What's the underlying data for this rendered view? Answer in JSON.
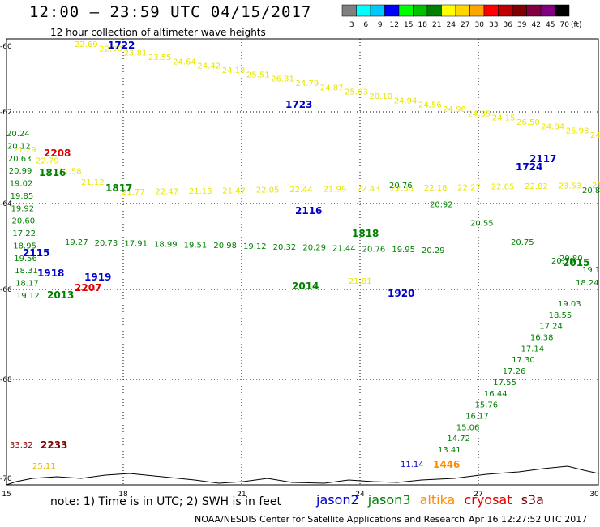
{
  "header": {
    "title": "12:00 – 23:59 UTC 04/15/2017",
    "subtitle": "12 hour collection of altimeter wave heights"
  },
  "legend": {
    "ticks": [
      "3",
      "6",
      "9",
      "12",
      "15",
      "18",
      "21",
      "24",
      "27",
      "30",
      "33",
      "36",
      "39",
      "42",
      "45",
      "70"
    ],
    "unit": "(ft)",
    "colors": [
      "#808080",
      "#00ffff",
      "#00c8ff",
      "#0000ff",
      "#00ff00",
      "#00c000",
      "#008000",
      "#ffff00",
      "#ffd700",
      "#ffa500",
      "#ff0000",
      "#c00000",
      "#800000",
      "#800040",
      "#800080",
      "#000000"
    ]
  },
  "axes": {
    "y_ticks": [
      "-60",
      "-62",
      "-64",
      "-66",
      "-68",
      "-70"
    ],
    "x_ticks": [
      "15",
      "18",
      "21",
      "24",
      "27",
      "30"
    ]
  },
  "footer": {
    "note": "note: 1) Time is in UTC; 2) SWH is in feet",
    "sats": [
      "jason2",
      "jason3",
      "altika",
      "cryosat",
      "s3a"
    ],
    "credit": "NOAA/NESDIS Center for Satellite Applications and Research",
    "timestamp": "Apr 16 12:27:52 UTC 2017"
  },
  "track_labels": [
    {
      "text": "1722",
      "color": "#0000cc"
    },
    {
      "text": "1723",
      "color": "#0000cc"
    },
    {
      "text": "2117",
      "color": "#0000cc"
    },
    {
      "text": "1724",
      "color": "#0000cc"
    },
    {
      "text": "2208",
      "color": "#dd0000"
    },
    {
      "text": "1816",
      "color": "#008000"
    },
    {
      "text": "1817",
      "color": "#008000"
    },
    {
      "text": "2116",
      "color": "#0000cc"
    },
    {
      "text": "1818",
      "color": "#008000"
    },
    {
      "text": "2115",
      "color": "#0000cc"
    },
    {
      "text": "2015",
      "color": "#008000"
    },
    {
      "text": "1918",
      "color": "#0000cc"
    },
    {
      "text": "1919",
      "color": "#0000cc"
    },
    {
      "text": "2207",
      "color": "#dd0000"
    },
    {
      "text": "2014",
      "color": "#008000"
    },
    {
      "text": "2013",
      "color": "#008000"
    },
    {
      "text": "1920",
      "color": "#0000cc"
    },
    {
      "text": "2233",
      "color": "#800000"
    },
    {
      "text": "1446",
      "color": "#ff8c00"
    }
  ],
  "values": {
    "yellow_top": [
      "22.69",
      "22.90",
      "23.81",
      "23.55",
      "24.64",
      "24.42",
      "24.18",
      "25.51",
      "26.31",
      "24.79",
      "24.87",
      "25.63",
      "20.10",
      "24.94",
      "24.56",
      "24.98",
      "24.35",
      "24.15",
      "26.50",
      "24.84",
      "25.98",
      "24.83"
    ],
    "yellow_mid": [
      "21.29",
      "22.79",
      "21.58",
      "21.12",
      "21.77",
      "22.47",
      "21.13",
      "21.47",
      "22.05",
      "22.44",
      "21.99",
      "22.43",
      "22.35",
      "22.18",
      "22.27",
      "22.65",
      "22.82",
      "23.53",
      "21.74"
    ],
    "green_left": [
      "20.24",
      "20.12",
      "20.63",
      "20.99",
      "19.02",
      "19.85",
      "19.92",
      "20.60",
      "17.22",
      "18.95",
      "19.56",
      "18.31",
      "18.17",
      "19.12"
    ],
    "green_right": [
      "20.76",
      "20.92",
      "20.55",
      "20.75",
      "20.79",
      "19.03",
      "18.55",
      "17.24",
      "16.38",
      "17.14",
      "17.30",
      "17.26",
      "17.55",
      "16.44",
      "15.76",
      "16.17",
      "15.06",
      "14.72",
      "13.41"
    ],
    "green_cross": [
      "19.27",
      "20.73",
      "17.91",
      "18.99",
      "19.51",
      "20.98",
      "19.12",
      "20.32",
      "20.29",
      "21.44",
      "20.76",
      "19.95",
      "20.29"
    ],
    "other": [
      "33.32",
      "25.11",
      "11.14",
      "18.24",
      "19.1",
      "20.83",
      "20.80",
      "21.81"
    ]
  }
}
